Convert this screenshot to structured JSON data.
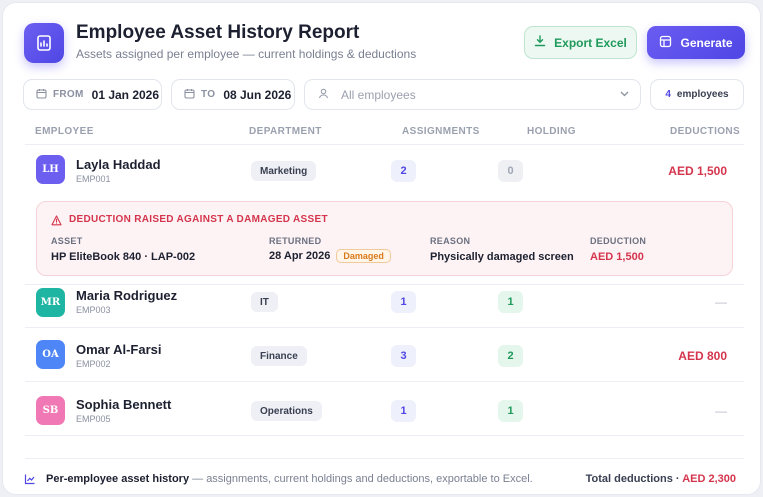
{
  "header": {
    "title": "Employee Asset History Report",
    "subtitle": "Assets assigned per employee — current holdings & deductions",
    "export_label": "Export Excel",
    "generate_label": "Generate"
  },
  "filters": {
    "from_label": "FROM",
    "from_value": "01 Jan 2026",
    "to_label": "TO",
    "to_value": "08 Jun 2026",
    "employee_placeholder": "All employees",
    "count_value": "4",
    "count_label": "employees"
  },
  "columns": [
    "EMPLOYEE",
    "DEPARTMENT",
    "ASSIGNMENTS",
    "HOLDING",
    "DEDUCTIONS"
  ],
  "rows": [
    {
      "initials": "LH",
      "name": "Layla Haddad",
      "code": "EMP001",
      "department": "Marketing",
      "assignments": "2",
      "holding": "0",
      "deductions": "AED 1,500",
      "avatar_color": "#6c5ff0"
    },
    {
      "initials": "MR",
      "name": "Maria Rodriguez",
      "code": "EMP003",
      "department": "IT",
      "assignments": "1",
      "holding": "1",
      "deductions": "—",
      "avatar_color": "#1fb5a3"
    },
    {
      "initials": "OA",
      "name": "Omar Al-Farsi",
      "code": "EMP002",
      "department": "Finance",
      "assignments": "3",
      "holding": "2",
      "deductions": "AED 800",
      "avatar_color": "#4f86f7"
    },
    {
      "initials": "SB",
      "name": "Sophia Bennett",
      "code": "EMP005",
      "department": "Operations",
      "assignments": "1",
      "holding": "1",
      "deductions": "—",
      "avatar_color": "#f078b4"
    }
  ],
  "alert": {
    "title": "DEDUCTION RAISED AGAINST A DAMAGED ASSET",
    "asset_label": "ASSET",
    "asset_value": "HP EliteBook 840 · LAP-002",
    "returned_label": "RETURNED",
    "returned_value": "28 Apr 2026",
    "status_badge": "Damaged",
    "reason_label": "REASON",
    "reason_value": "Physically damaged screen",
    "deduction_label": "DEDUCTION",
    "deduction_value": "AED 1,500"
  },
  "footer": {
    "bold": "Per-employee asset history",
    "text": " — assignments, current holdings and deductions, exportable to Excel.",
    "total_label": "Total deductions · ",
    "total_value": "AED 2,300"
  },
  "colors": {
    "accent": "#4f46e5",
    "success": "#1f9a5b",
    "danger": "#d4354d"
  }
}
